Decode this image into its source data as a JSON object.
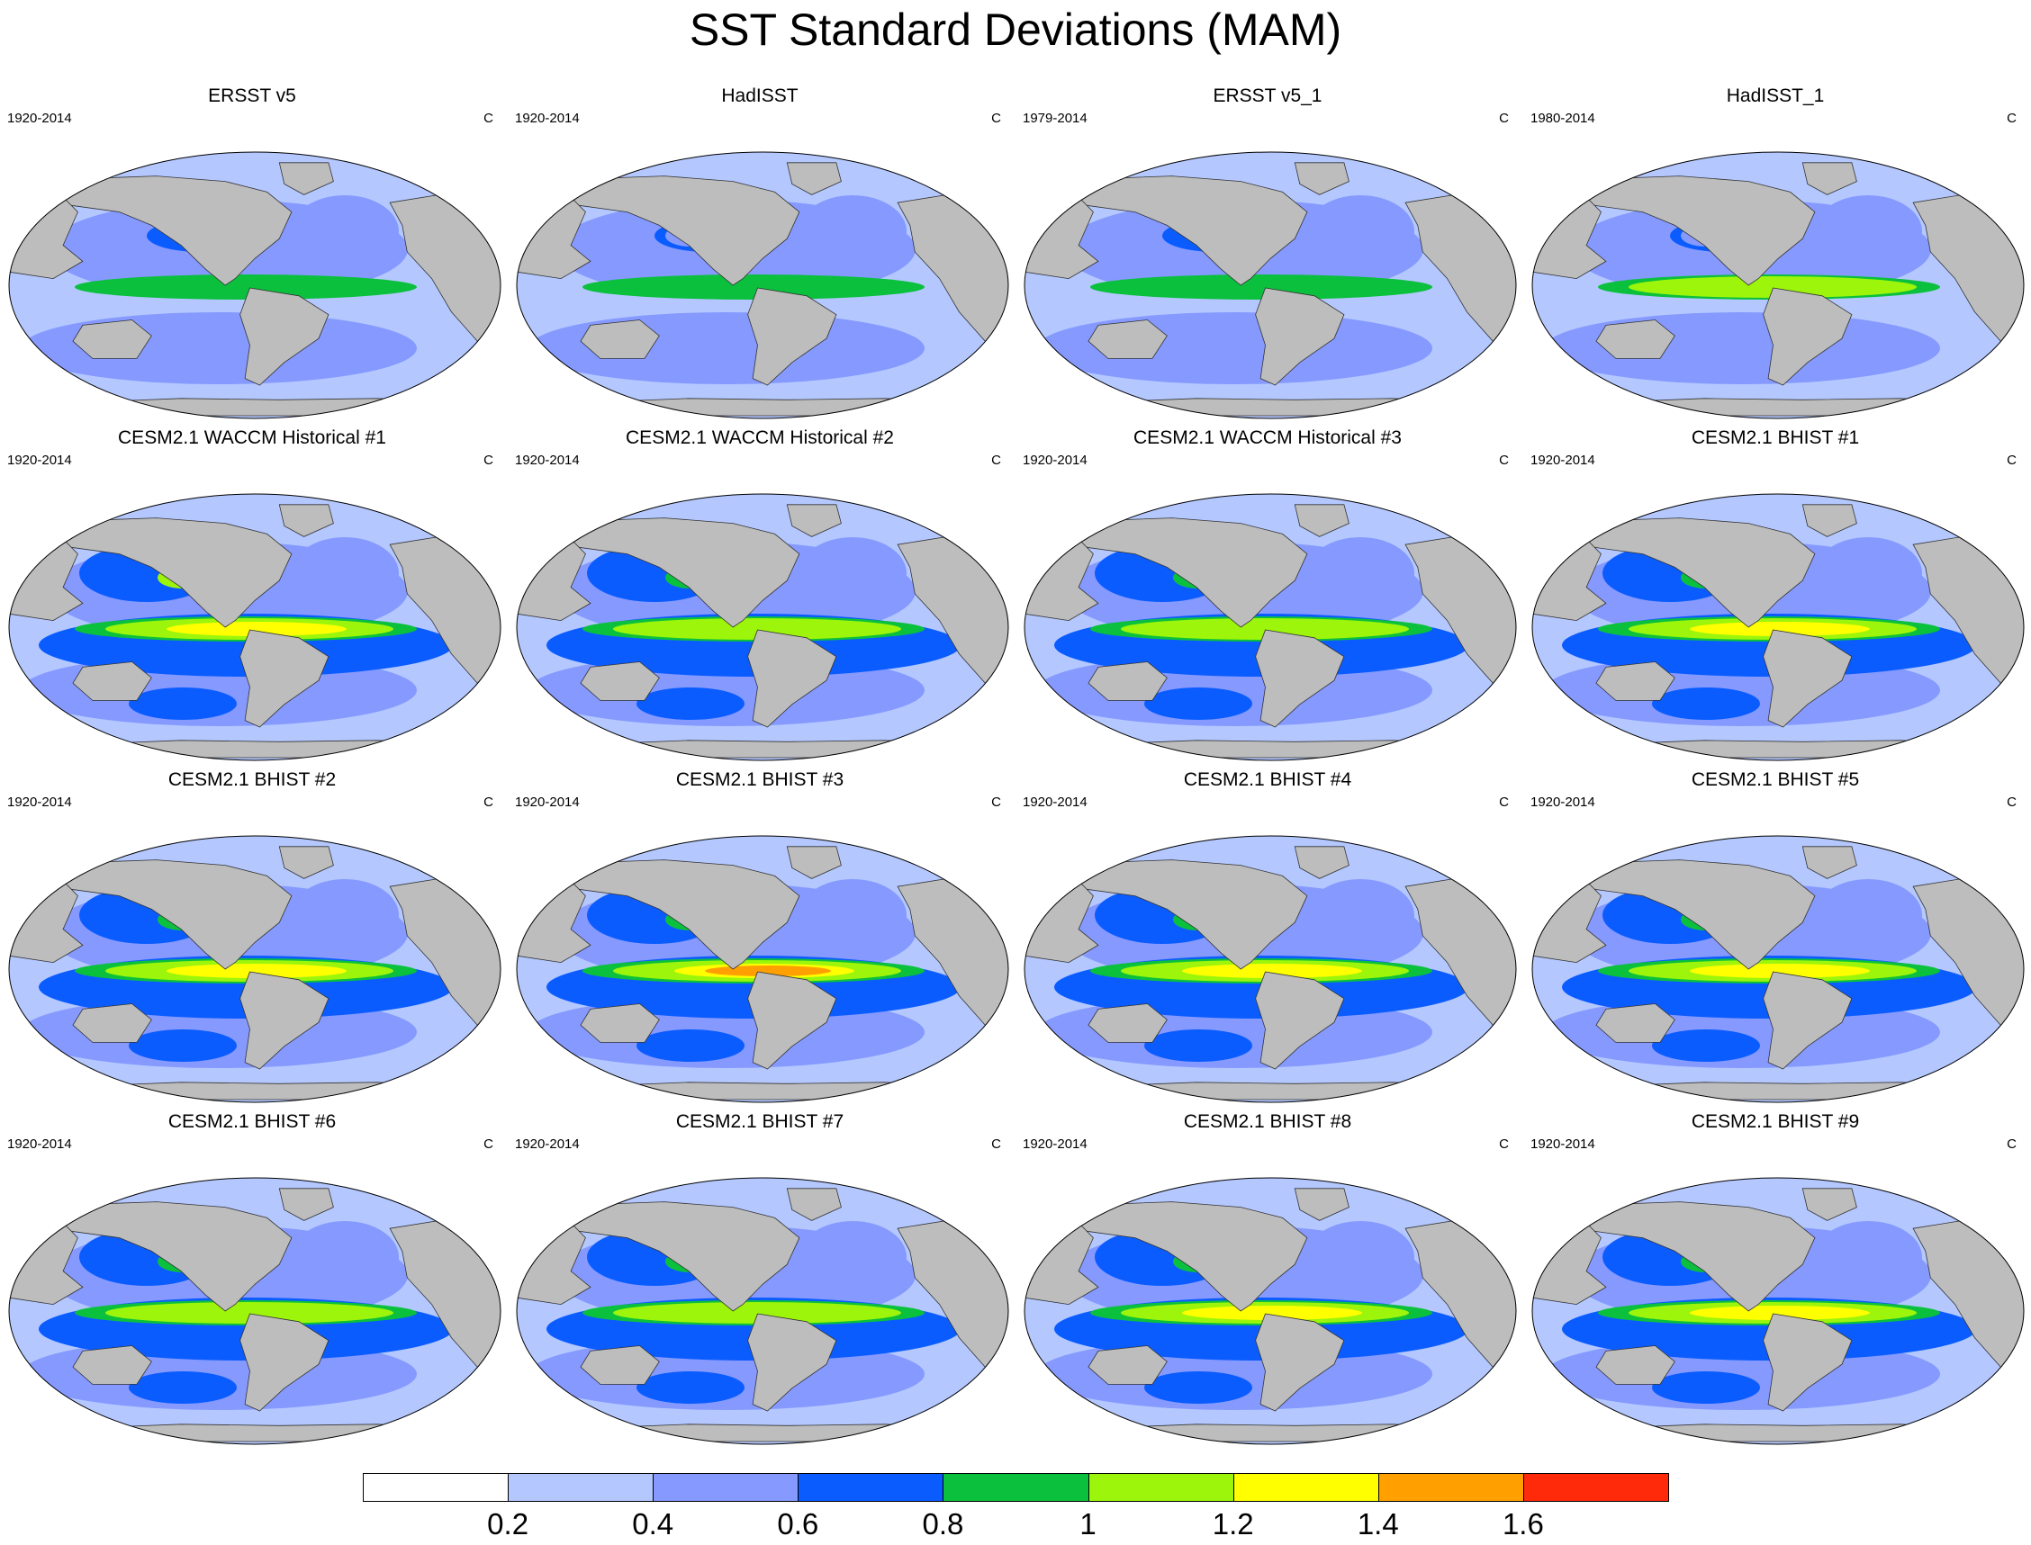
{
  "title": "SST Standard Deviations (MAM)",
  "units": "C",
  "panels": [
    {
      "title": "ERSST v5",
      "years": "1920-2014",
      "type": "obs",
      "eq": 0.9,
      "np": 0.7
    },
    {
      "title": "HadISST",
      "years": "1920-2014",
      "type": "obs",
      "eq": 0.8,
      "np": 0.5
    },
    {
      "title": "ERSST v5_1",
      "years": "1979-2014",
      "type": "obs",
      "eq": 0.9,
      "np": 0.7
    },
    {
      "title": "HadISST_1",
      "years": "1980-2014",
      "type": "obs",
      "eq": 1.0,
      "np": 0.6
    },
    {
      "title": "CESM2.1 WACCM Historical #1",
      "years": "1920-2014",
      "type": "model",
      "eq": 1.5,
      "np": 1.0
    },
    {
      "title": "CESM2.1 WACCM Historical #2",
      "years": "1920-2014",
      "type": "model",
      "eq": 1.3,
      "np": 0.8
    },
    {
      "title": "CESM2.1 WACCM Historical #3",
      "years": "1920-2014",
      "type": "model",
      "eq": 1.3,
      "np": 0.9
    },
    {
      "title": "CESM2.1 BHIST #1",
      "years": "1920-2014",
      "type": "model",
      "eq": 1.5,
      "np": 0.9
    },
    {
      "title": "CESM2.1 BHIST #2",
      "years": "1920-2014",
      "type": "model",
      "eq": 1.5,
      "np": 0.9
    },
    {
      "title": "CESM2.1 BHIST #3",
      "years": "1920-2014",
      "type": "model",
      "eq": 1.7,
      "np": 0.9
    },
    {
      "title": "CESM2.1 BHIST #4",
      "years": "1920-2014",
      "type": "model",
      "eq": 1.5,
      "np": 0.9
    },
    {
      "title": "CESM2.1 BHIST #5",
      "years": "1920-2014",
      "type": "model",
      "eq": 1.5,
      "np": 0.9
    },
    {
      "title": "CESM2.1 BHIST #6",
      "years": "1920-2014",
      "type": "model",
      "eq": 1.3,
      "np": 0.9
    },
    {
      "title": "CESM2.1 BHIST #7",
      "years": "1920-2014",
      "type": "model",
      "eq": 1.3,
      "np": 0.8
    },
    {
      "title": "CESM2.1 BHIST #8",
      "years": "1920-2014",
      "type": "model",
      "eq": 1.5,
      "np": 0.9
    },
    {
      "title": "CESM2.1 BHIST #9",
      "years": "1920-2014",
      "type": "model",
      "eq": 1.5,
      "np": 0.9
    }
  ],
  "colorbar": {
    "colors": [
      "#ffffff",
      "#b4c8ff",
      "#8599ff",
      "#0a5cff",
      "#0ac03c",
      "#9cf50a",
      "#ffff00",
      "#ffa000",
      "#ff2a0a"
    ],
    "labels": [
      "0.2",
      "0.4",
      "0.6",
      "0.8",
      "1",
      "1.2",
      "1.4",
      "1.6"
    ]
  },
  "land_color": "#bdbdbd"
}
